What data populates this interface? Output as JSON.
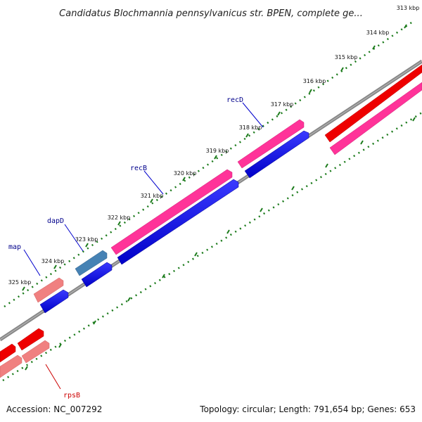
{
  "title": "Candidatus Blochmannia pennsylvanicus str. BPEN, complete ge...",
  "footer": {
    "accession": "Accession: NC_007292",
    "summary": "Topology: circular; Length: 791,654 bp; Genes: 653"
  },
  "ticks": [
    "313 kbp",
    "314 kbp",
    "315 kbp",
    "316 kbp",
    "317 kbp",
    "318 kbp",
    "319 kbp",
    "320 kbp",
    "321 kbp",
    "322 kbp",
    "323 kbp",
    "324 kbp",
    "325 kbp"
  ],
  "gene_labels": [
    {
      "name": "recD",
      "color": "#00008b"
    },
    {
      "name": "recB",
      "color": "#00008b"
    },
    {
      "name": "dapD",
      "color": "#00008b"
    },
    {
      "name": "map",
      "color": "#00008b"
    },
    {
      "name": "rpsB",
      "color": "#cc0000"
    }
  ],
  "colors": {
    "backbone": "#888888",
    "tick": "#1a7a1a",
    "cds_strand": "#0000ee",
    "gene_magenta": "#ff3399",
    "gene_red": "#ee0000",
    "gene_salmon": "#f08080",
    "gene_steel": "#4682b4"
  }
}
